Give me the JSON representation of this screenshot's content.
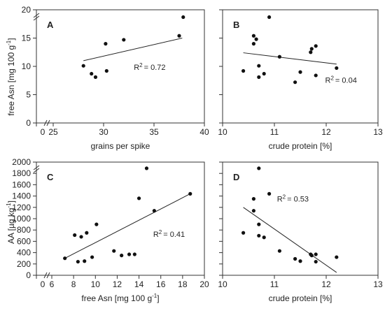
{
  "figure": {
    "ylabel_top": "free Asn [mg 100 g",
    "ylabel_top_sup": "-1",
    "ylabel_top_end": "]",
    "ylabel_bottom": "AA [µg kg",
    "ylabel_bottom_sup": "-1",
    "ylabel_bottom_end": "]"
  },
  "chart_data": [
    {
      "id": "A",
      "type": "scatter",
      "letter": "A",
      "xlabel": "grains per spike",
      "ylabel": "free Asn [mg 100 g-1]",
      "xlim": [
        25,
        40
      ],
      "ylim": [
        0,
        20
      ],
      "x_ticks": [
        25,
        30,
        35,
        40
      ],
      "x_tick_labels": [
        "25",
        "30",
        "35",
        "40"
      ],
      "x_zero_label": "0",
      "y_ticks": [
        0,
        5,
        10,
        15,
        20
      ],
      "y_tick_labels": [
        "0",
        "5",
        "10",
        "15",
        "20"
      ],
      "x": [
        28.0,
        28.8,
        29.2,
        30.2,
        30.3,
        32.0,
        37.5,
        37.9
      ],
      "y": [
        10.1,
        8.7,
        8.1,
        14.0,
        9.2,
        14.7,
        15.4,
        18.7
      ],
      "trend": {
        "x": [
          28.0,
          37.8
        ],
        "y": [
          11.0,
          15.0
        ]
      },
      "r2_base": "R",
      "r2_sup": "2",
      "r2_value": "= 0.72",
      "r2_pos": [
        33.0,
        9.4
      ]
    },
    {
      "id": "B",
      "type": "scatter",
      "letter": "B",
      "xlabel": "crude protein [%]",
      "ylabel": "",
      "xlim": [
        10,
        13
      ],
      "ylim": [
        0,
        20
      ],
      "x_ticks": [
        10,
        11,
        12,
        13
      ],
      "x_tick_labels": [
        "10",
        "11",
        "12",
        "13"
      ],
      "y_ticks": [
        0,
        5,
        10,
        15,
        20
      ],
      "x": [
        10.4,
        10.6,
        10.6,
        10.65,
        10.7,
        10.7,
        10.8,
        10.9,
        11.1,
        11.4,
        11.5,
        11.7,
        11.72,
        11.8,
        11.8,
        12.2
      ],
      "y": [
        9.2,
        15.4,
        14.0,
        14.8,
        10.1,
        8.1,
        8.7,
        18.7,
        11.7,
        7.2,
        9.0,
        12.5,
        13.1,
        13.6,
        8.4,
        9.7
      ],
      "trend": {
        "x": [
          10.4,
          12.2
        ],
        "y": [
          12.4,
          10.4
        ]
      },
      "r2_base": "R",
      "r2_sup": "2",
      "r2_value": "= 0.04",
      "r2_pos": [
        11.98,
        7.1
      ]
    },
    {
      "id": "C",
      "type": "scatter",
      "letter": "C",
      "xlabel": "free Asn [mg 100 g-1]",
      "ylabel": "AA [µg kg-1]",
      "xlim": [
        6,
        20
      ],
      "ylim": [
        0,
        2000
      ],
      "x_ticks": [
        6,
        8,
        10,
        12,
        14,
        16,
        18,
        20
      ],
      "x_tick_labels": [
        "6",
        "8",
        "10",
        "12",
        "14",
        "16",
        "18",
        "20"
      ],
      "x_zero_label": "0",
      "y_ticks": [
        0,
        200,
        400,
        600,
        800,
        1000,
        1200,
        1400,
        1600,
        1800,
        2000
      ],
      "y_tick_labels": [
        "0",
        "200",
        "400",
        "600",
        "800",
        "1000",
        "1200",
        "1400",
        "1600",
        "1800",
        "2000"
      ],
      "x": [
        7.2,
        8.1,
        8.4,
        8.7,
        9.0,
        9.2,
        9.7,
        10.1,
        11.7,
        12.4,
        13.1,
        13.6,
        14.0,
        14.7,
        15.4,
        18.7
      ],
      "y": [
        300,
        710,
        240,
        680,
        250,
        750,
        320,
        900,
        430,
        350,
        370,
        370,
        1360,
        1890,
        1140,
        1440
      ],
      "trend": {
        "x": [
          7.2,
          18.7
        ],
        "y": [
          300,
          1440
        ]
      },
      "r2_base": "R",
      "r2_sup": "2",
      "r2_value": "= 0.41",
      "r2_pos": [
        15.3,
        680
      ]
    },
    {
      "id": "D",
      "type": "scatter",
      "letter": "D",
      "xlabel": "crude protein [%]",
      "ylabel": "",
      "xlim": [
        10,
        13
      ],
      "ylim": [
        0,
        2000
      ],
      "x_ticks": [
        10,
        11,
        12,
        13
      ],
      "x_tick_labels": [
        "10",
        "11",
        "12",
        "13"
      ],
      "y_ticks": [
        0,
        200,
        400,
        600,
        800,
        1000,
        1200,
        1400,
        1600,
        1800,
        2000
      ],
      "x": [
        10.4,
        10.6,
        10.6,
        10.7,
        10.7,
        10.7,
        10.8,
        10.9,
        11.1,
        11.4,
        11.5,
        11.7,
        11.72,
        11.8,
        11.8,
        12.2
      ],
      "y": [
        750,
        1350,
        1140,
        900,
        700,
        1890,
        670,
        1440,
        430,
        290,
        250,
        370,
        350,
        370,
        240,
        320
      ],
      "trend": {
        "x": [
          10.4,
          12.2
        ],
        "y": [
          1200,
          50
        ]
      },
      "r2_base": "R",
      "r2_sup": "2",
      "r2_value": "= 0.53",
      "r2_pos": [
        11.05,
        1300
      ]
    }
  ]
}
